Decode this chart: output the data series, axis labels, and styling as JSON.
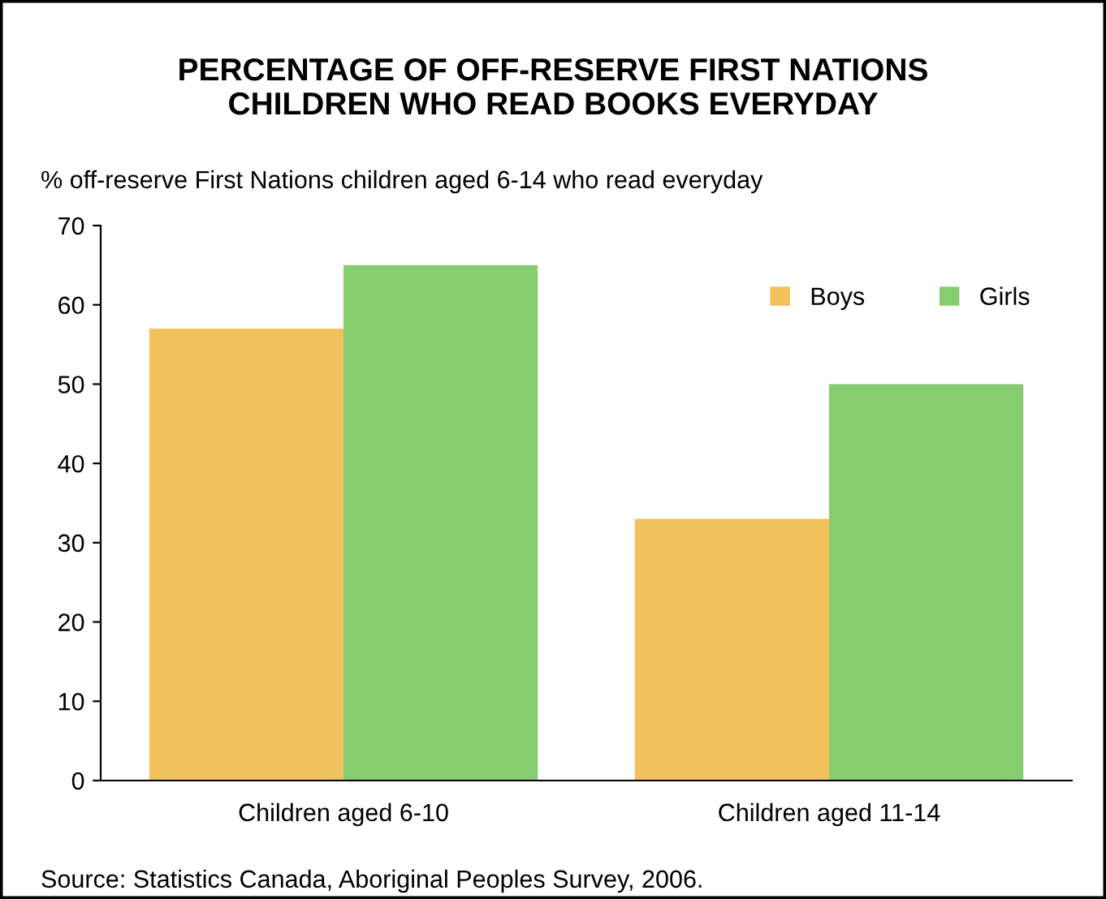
{
  "chart_data": {
    "type": "bar",
    "title": "PERCENTAGE OF OFF-RESERVE FIRST NATIONS\nCHILDREN WHO READ BOOKS EVERYDAY",
    "ylabel": "% off-reserve First Nations children aged 6-14 who read everyday",
    "categories": [
      "Children aged 6-10",
      "Children aged 11-14"
    ],
    "series": [
      {
        "name": "Boys",
        "color": "#f0c15c",
        "values": [
          57,
          33
        ]
      },
      {
        "name": "Girls",
        "color": "#88cc70",
        "values": [
          65,
          50
        ]
      }
    ],
    "ylim": [
      0,
      70
    ],
    "yticks": [
      0,
      10,
      20,
      30,
      40,
      50,
      60,
      70
    ],
    "grid": false,
    "legend": "top right",
    "annotations": [
      "Source: Statistics Canada, Aboriginal Peoples Survey, 2006."
    ]
  }
}
